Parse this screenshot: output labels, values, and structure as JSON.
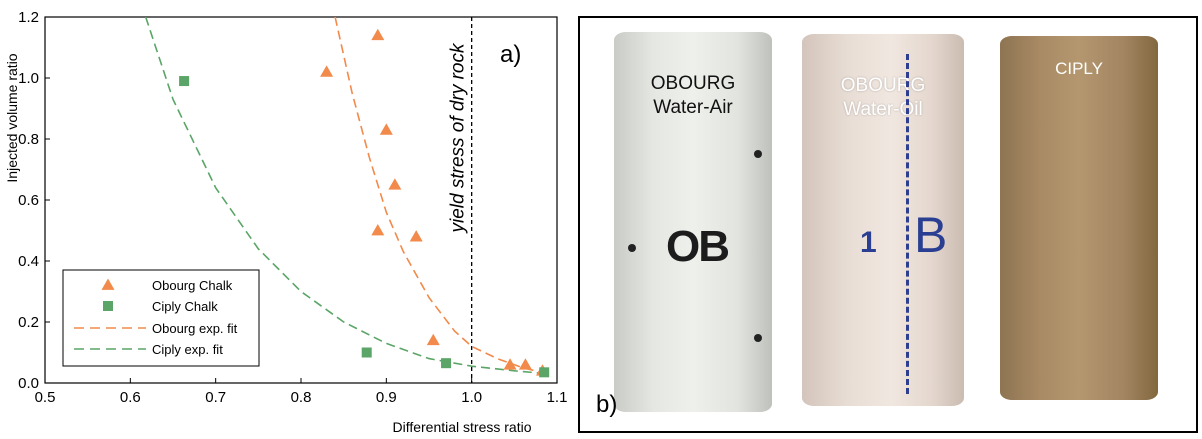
{
  "chart_data": {
    "type": "scatter",
    "panel_label": "a)",
    "xlabel": "Differential stress ratio",
    "ylabel": "Injected volume ratio",
    "xlim": [
      0.5,
      1.1
    ],
    "ylim": [
      0,
      1.2
    ],
    "x_ticks": [
      "0.5",
      "0.6",
      "0.7",
      "0.8",
      "0.9",
      "1.0",
      "1.1"
    ],
    "y_ticks": [
      "0.0",
      "0.2",
      "0.4",
      "0.6",
      "0.8",
      "1.0",
      "1.2"
    ],
    "grid": false,
    "legend_position": "lower-left",
    "vertical_line": {
      "x": 1.0,
      "label": "yield stress of dry rock",
      "style": "dashed"
    },
    "series": [
      {
        "name": "Obourg Chalk",
        "kind": "points",
        "marker": "triangle",
        "color": "#f28a4b",
        "x": [
          0.83,
          0.89,
          0.9,
          0.91,
          0.89,
          0.935,
          0.955,
          1.045,
          1.063,
          1.083
        ],
        "y": [
          1.02,
          1.14,
          0.83,
          0.65,
          0.5,
          0.48,
          0.14,
          0.06,
          0.06,
          0.04
        ]
      },
      {
        "name": "Ciply Chalk",
        "kind": "points",
        "marker": "square",
        "color": "#5aa567",
        "x": [
          0.663,
          0.877,
          0.97,
          1.085
        ],
        "y": [
          0.99,
          0.1,
          0.065,
          0.035
        ]
      },
      {
        "name": "Obourg exp. fit",
        "kind": "curve",
        "style": "dashed",
        "color": "#f28a4b",
        "x": [
          0.84,
          0.86,
          0.88,
          0.9,
          0.92,
          0.95,
          0.98,
          1.0,
          1.03,
          1.06,
          1.09
        ],
        "y": [
          1.2,
          0.95,
          0.74,
          0.56,
          0.43,
          0.28,
          0.17,
          0.12,
          0.08,
          0.05,
          0.03
        ]
      },
      {
        "name": "Ciply exp. fit",
        "kind": "curve",
        "style": "dashed",
        "color": "#5aa567",
        "x": [
          0.618,
          0.65,
          0.7,
          0.75,
          0.8,
          0.85,
          0.9,
          0.95,
          1.0,
          1.05,
          1.09
        ],
        "y": [
          1.2,
          0.93,
          0.64,
          0.44,
          0.3,
          0.2,
          0.13,
          0.08,
          0.055,
          0.04,
          0.03
        ]
      }
    ]
  },
  "photo_panel": {
    "panel_label": "b)",
    "samples": [
      {
        "label_line1": "OBOURG",
        "label_line2": "Water-Air",
        "marking": "OB",
        "color": "#e8eae5"
      },
      {
        "label_line1": "OBOURG",
        "label_line2": "Water-Oil",
        "marking": "B",
        "marking_prefix": "1",
        "color": "#ece2da"
      },
      {
        "label_line1": "CIPLY",
        "label_line2": "",
        "color": "#a88b66"
      }
    ]
  }
}
